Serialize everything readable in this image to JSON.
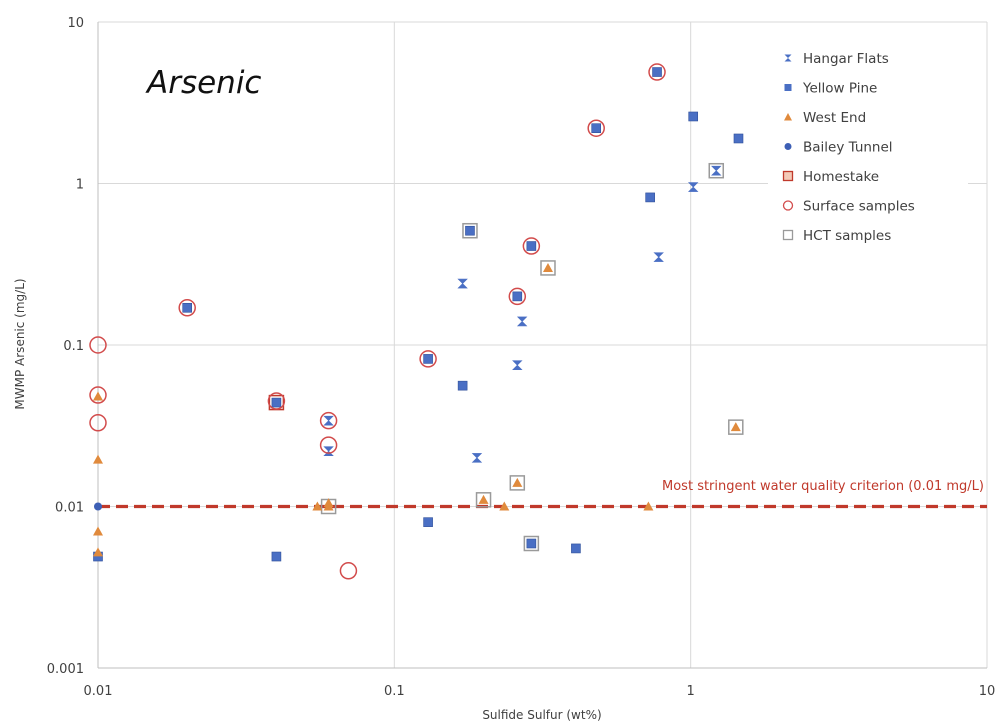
{
  "chart_data": {
    "type": "scatter",
    "title": "",
    "panel_label": "Arsenic",
    "xlabel": "Sulfide Sulfur (wt%)",
    "ylabel": "MWMP Arsenic (mg/L)",
    "x_scale": "log",
    "y_scale": "log",
    "xlim": [
      0.01,
      10
    ],
    "ylim": [
      0.001,
      10
    ],
    "x_ticks": [
      "0.01",
      "0.1",
      "1",
      "10"
    ],
    "y_ticks": [
      "0.001",
      "0.01",
      "0.1",
      "1",
      "10"
    ],
    "grid": true,
    "legend_position": "top-right",
    "colors": {
      "blue": "#4a6fc4",
      "orange": "#e08a3c",
      "red": "#d24b4b",
      "gray": "#9a9a9a",
      "line": "#c0392b"
    },
    "reference_line": {
      "y": 0.01,
      "label": "Most stringent water quality criterion (0.01 mg/L)",
      "style": "dashed"
    },
    "legend": [
      {
        "name": "Hangar Flats",
        "marker": "hourglass",
        "color": "#4a6fc4"
      },
      {
        "name": "Yellow Pine",
        "marker": "square",
        "color": "#4a6fc4"
      },
      {
        "name": "West End",
        "marker": "triangle",
        "color": "#e08a3c"
      },
      {
        "name": "Bailey Tunnel",
        "marker": "bullet",
        "color": "#3d5fb5"
      },
      {
        "name": "Homestake",
        "marker": "square-open",
        "color": "#c0392b"
      },
      {
        "name": "Surface samples",
        "marker": "circle-open",
        "color": "#d24b4b"
      },
      {
        "name": "HCT samples",
        "marker": "square-open",
        "color": "#9a9a9a"
      }
    ],
    "series": [
      {
        "name": "Hangar Flats",
        "points": [
          [
            0.06,
            0.034
          ],
          [
            0.06,
            0.022
          ],
          [
            0.17,
            0.24
          ],
          [
            0.19,
            0.02
          ],
          [
            0.26,
            0.075
          ],
          [
            0.27,
            0.14
          ],
          [
            0.78,
            0.35
          ],
          [
            1.02,
            0.95
          ],
          [
            1.22,
            1.2
          ]
        ]
      },
      {
        "name": "Yellow Pine",
        "points": [
          [
            0.01,
            0.0049
          ],
          [
            0.02,
            0.17
          ],
          [
            0.04,
            0.0049
          ],
          [
            0.04,
            0.044
          ],
          [
            0.13,
            0.008
          ],
          [
            0.13,
            0.082
          ],
          [
            0.17,
            0.056
          ],
          [
            0.18,
            0.51
          ],
          [
            0.26,
            0.2
          ],
          [
            0.29,
            0.0059
          ],
          [
            0.29,
            0.41
          ],
          [
            0.41,
            0.0055
          ],
          [
            0.48,
            2.2
          ],
          [
            0.73,
            0.82
          ],
          [
            0.77,
            4.9
          ],
          [
            1.02,
            2.6
          ],
          [
            1.45,
            1.9
          ]
        ]
      },
      {
        "name": "West End",
        "points": [
          [
            0.01,
            0.007
          ],
          [
            0.01,
            0.0052
          ],
          [
            0.01,
            0.0195
          ],
          [
            0.01,
            0.048
          ],
          [
            0.055,
            0.01
          ],
          [
            0.06,
            0.0105
          ],
          [
            0.06,
            0.01
          ],
          [
            0.2,
            0.011
          ],
          [
            0.235,
            0.01
          ],
          [
            0.26,
            0.014
          ],
          [
            0.33,
            0.3
          ],
          [
            0.72,
            0.01
          ],
          [
            1.42,
            0.031
          ]
        ]
      },
      {
        "name": "Bailey Tunnel",
        "points": [
          [
            0.01,
            0.01
          ]
        ]
      },
      {
        "name": "Homestake",
        "points": [
          [
            0.04,
            0.044
          ]
        ]
      },
      {
        "name": "Surface samples",
        "points": [
          [
            0.01,
            0.1
          ],
          [
            0.01,
            0.049
          ],
          [
            0.01,
            0.033
          ],
          [
            0.02,
            0.17
          ],
          [
            0.04,
            0.045
          ],
          [
            0.06,
            0.034
          ],
          [
            0.06,
            0.024
          ],
          [
            0.07,
            0.004
          ],
          [
            0.13,
            0.082
          ],
          [
            0.26,
            0.2
          ],
          [
            0.29,
            0.41
          ],
          [
            0.48,
            2.2
          ],
          [
            0.77,
            4.9
          ]
        ]
      },
      {
        "name": "HCT samples",
        "points": [
          [
            0.06,
            0.01
          ],
          [
            0.18,
            0.51
          ],
          [
            0.2,
            0.011
          ],
          [
            0.26,
            0.014
          ],
          [
            0.29,
            0.0059
          ],
          [
            0.33,
            0.3
          ],
          [
            1.22,
            1.2
          ],
          [
            1.42,
            0.031
          ]
        ]
      }
    ]
  }
}
